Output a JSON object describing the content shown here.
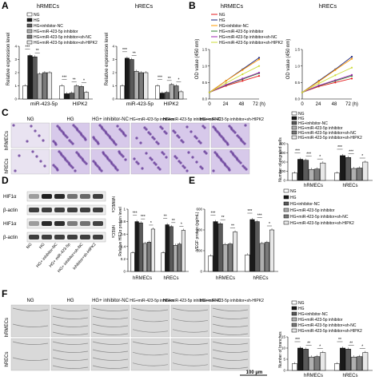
{
  "figure": {
    "panels": {
      "A": {
        "letter": "A",
        "left_title": "hRMECs",
        "right_title": "hRECs",
        "ylabel": "Relative expression level",
        "legend": [
          "NG",
          "HG",
          "HG+inhibitor-NC",
          "HG+miR-423-5p inhibitor",
          "HG+miR-423-5p inhibitor+sh-NC",
          "HG+miR-423-5p inhibitor+sh-HIPK2"
        ],
        "groups": [
          "miR-423-5p",
          "HIPK2"
        ]
      },
      "B": {
        "letter": "B",
        "left_title": "hRMECs",
        "right_title": "hRECs",
        "ylabel": "OD value (450 nm)",
        "x_ticks": [
          "0",
          "24",
          "48",
          "72 (h)"
        ],
        "legend": [
          "NG",
          "HG",
          "HG+inhibitor-NC",
          "HG+miR-423-5p inhibitor",
          "HG+miR-423-5p inhibitor+sh-NC",
          "HG+miR-423-5p inhibitor+sh-HIPK2"
        ]
      },
      "C": {
        "letter": "C",
        "col_labels": [
          "NG",
          "HG",
          "HG+ inhibitor-NC",
          "HG+miR-423-5p inhibitor",
          "HG+miR-423-5p inhibitor+sh-NC",
          "HG+miR-423-5p inhibitor+sh-HIPK2"
        ],
        "row_labels": [
          "hRMECs",
          "hRECs"
        ],
        "ylabel": "Number of migrated cells",
        "groups": [
          "hRMECs",
          "hRECs"
        ],
        "legend": [
          "NG",
          "HG",
          "HG+inhibitor-NC",
          "HG+miR-423-5p inhibitor",
          "HG+miR-423-5p inhibitor+sh-NC",
          "HG+miR-423-5p inhibitor+sh-HIPK2"
        ]
      },
      "D": {
        "letter": "D",
        "blot_labels": [
          "HIF1α",
          "β-actin",
          "HIF1α",
          "β-actin"
        ],
        "side_labels": [
          "hRMECs",
          "hRECs"
        ],
        "lane_labels": [
          "NG",
          "HG",
          "HG+ inhibitor-NC",
          "HG+ miR-423-5p",
          "HG+ inhibitor+sh-NC",
          "inhibitor+sh-HIPK2"
        ],
        "ylabel": "Relative HIF1α protein level",
        "groups": [
          "hRMECs",
          "hRECs"
        ]
      },
      "E": {
        "letter": "E",
        "ylabel": "VEGF protein (pg/mL)",
        "groups": [
          "hRMECs",
          "hRECs"
        ],
        "legend": [
          "NG",
          "HG",
          "HG+inhibitor-NC",
          "HG+miR-423-5p inhibitor",
          "HG+miR-423-5p inhibitor+sh-NC",
          "HG+miR-423-5p inhibitor+sh-HIPK2"
        ]
      },
      "F": {
        "letter": "F",
        "col_labels": [
          "NG",
          "HG",
          "HG+ inhibitor-NC",
          "HG+miR-423-5p inhibitor",
          "HG+miR-423-5p inhibitor+sh-NC",
          "HG+miR-423-5p inhibitor+sh-HIPK2"
        ],
        "row_labels": [
          "hRMECs",
          "hRECs"
        ],
        "scale": "100 μm",
        "ylabel": "Number of branches",
        "groups": [
          "hRMECs",
          "hRECs"
        ],
        "legend": [
          "NG",
          "HG",
          "HG+inhibitor-NC",
          "HG+miR-423-5p inhibitor",
          "HG+miR-423-5p inhibitor+sh-NC",
          "HG+miR-423-5p inhibitor+sh-HIPK2"
        ]
      }
    },
    "series_fills": [
      "#ffffff",
      "#1a1a1a",
      "#5a5a5a",
      "#b0b0b0",
      "#7a7a7a",
      "#e8e8e8"
    ],
    "line_colors": [
      "#e41a1c",
      "#1a237e",
      "#ff9800",
      "#2e7d32",
      "#9c27b0",
      "#cddc39"
    ]
  },
  "chart_data": [
    {
      "id": "A-left",
      "type": "bar",
      "title": "hRMECs",
      "ylabel": "Relative expression level",
      "categories": [
        "miR-423-5p",
        "HIPK2"
      ],
      "ylim": [
        0,
        4
      ],
      "yticks": [
        0,
        1,
        2,
        3,
        4
      ],
      "series": [
        {
          "name": "NG",
          "values": [
            1.0,
            1.0
          ]
        },
        {
          "name": "HG",
          "values": [
            3.3,
            0.4
          ]
        },
        {
          "name": "HG+inhibitor-NC",
          "values": [
            3.2,
            0.45
          ]
        },
        {
          "name": "HG+miR-423-5p inhibitor",
          "values": [
            1.9,
            1.0
          ]
        },
        {
          "name": "HG+miR-423-5p inhibitor+sh-NC",
          "values": [
            2.0,
            0.95
          ]
        },
        {
          "name": "HG+miR-423-5p inhibitor+sh-HIPK2",
          "values": [
            2.0,
            0.5
          ]
        }
      ],
      "sig": [
        "***",
        "**",
        "",
        "***",
        "**",
        "*"
      ]
    },
    {
      "id": "A-right",
      "type": "bar",
      "title": "hRECs",
      "ylabel": "Relative expression level",
      "categories": [
        "miR-423-5p",
        "HIPK2"
      ],
      "ylim": [
        0,
        4
      ],
      "yticks": [
        0,
        1,
        2,
        3,
        4
      ],
      "series": [
        {
          "name": "NG",
          "values": [
            1.0,
            1.0
          ]
        },
        {
          "name": "HG",
          "values": [
            3.1,
            0.45
          ]
        },
        {
          "name": "HG+inhibitor-NC",
          "values": [
            3.0,
            0.5
          ]
        },
        {
          "name": "HG+miR-423-5p inhibitor",
          "values": [
            2.1,
            1.1
          ]
        },
        {
          "name": "HG+miR-423-5p inhibitor+sh-NC",
          "values": [
            2.0,
            1.0
          ]
        },
        {
          "name": "HG+miR-423-5p inhibitor+sh-HIPK2",
          "values": [
            2.0,
            0.55
          ]
        }
      ],
      "sig": [
        "***",
        "**",
        "",
        "***",
        "**",
        "*"
      ]
    },
    {
      "id": "B-left",
      "type": "line",
      "title": "hRMECs",
      "ylabel": "OD value (450 nm)",
      "x": [
        0,
        24,
        48,
        72
      ],
      "ylim": [
        0,
        1.5
      ],
      "yticks": [
        0.0,
        0.5,
        1.0,
        1.5
      ],
      "series": [
        {
          "name": "NG",
          "values": [
            0.2,
            0.4,
            0.55,
            0.7
          ]
        },
        {
          "name": "HG",
          "values": [
            0.2,
            0.55,
            0.9,
            1.25
          ]
        },
        {
          "name": "HG+inhibitor-NC",
          "values": [
            0.2,
            0.55,
            0.88,
            1.2
          ]
        },
        {
          "name": "HG+miR-423-5p inhibitor",
          "values": [
            0.2,
            0.42,
            0.6,
            0.78
          ]
        },
        {
          "name": "HG+miR-423-5p inhibitor+sh-NC",
          "values": [
            0.2,
            0.43,
            0.62,
            0.8
          ]
        },
        {
          "name": "HG+miR-423-5p inhibitor+sh-HIPK2",
          "values": [
            0.2,
            0.48,
            0.75,
            1.0
          ]
        }
      ]
    },
    {
      "id": "B-right",
      "type": "line",
      "title": "hRECs",
      "ylabel": "OD value (450 nm)",
      "x": [
        0,
        24,
        48,
        72
      ],
      "ylim": [
        0,
        1.5
      ],
      "yticks": [
        0.0,
        0.5,
        1.0,
        1.5
      ],
      "series": [
        {
          "name": "NG",
          "values": [
            0.2,
            0.38,
            0.5,
            0.62
          ]
        },
        {
          "name": "HG",
          "values": [
            0.2,
            0.55,
            0.9,
            1.28
          ]
        },
        {
          "name": "HG+inhibitor-NC",
          "values": [
            0.2,
            0.53,
            0.88,
            1.22
          ]
        },
        {
          "name": "HG+miR-423-5p inhibitor",
          "values": [
            0.2,
            0.4,
            0.55,
            0.7
          ]
        },
        {
          "name": "HG+miR-423-5p inhibitor+sh-NC",
          "values": [
            0.2,
            0.41,
            0.57,
            0.73
          ]
        },
        {
          "name": "HG+miR-423-5p inhibitor+sh-HIPK2",
          "values": [
            0.2,
            0.47,
            0.72,
            0.95
          ]
        }
      ]
    },
    {
      "id": "C",
      "type": "bar",
      "ylabel": "Number of migrated cells",
      "categories": [
        "hRMECs",
        "hRECs"
      ],
      "ylim": [
        0,
        400
      ],
      "yticks": [
        0,
        100,
        200,
        300,
        400
      ],
      "series": [
        {
          "name": "NG",
          "values": [
            80,
            80
          ]
        },
        {
          "name": "HG",
          "values": [
            230,
            270
          ]
        },
        {
          "name": "HG+inhibitor-NC",
          "values": [
            220,
            250
          ]
        },
        {
          "name": "HG+miR-423-5p inhibitor",
          "values": [
            120,
            130
          ]
        },
        {
          "name": "HG+miR-423-5p inhibitor+sh-NC",
          "values": [
            125,
            135
          ]
        },
        {
          "name": "HG+miR-423-5p inhibitor+sh-HIPK2",
          "values": [
            190,
            200
          ]
        }
      ],
      "sig": [
        "***",
        "***",
        "*",
        "***",
        "***",
        "*"
      ]
    },
    {
      "id": "D",
      "type": "bar",
      "ylabel": "Relative HIF1α protein level",
      "categories": [
        "hRMECs",
        "hRECs"
      ],
      "ylim": [
        0,
        1.0
      ],
      "yticks": [
        0.0,
        0.2,
        0.4,
        0.6,
        0.8,
        1.0
      ],
      "series": [
        {
          "name": "NG",
          "values": [
            0.3,
            0.3
          ]
        },
        {
          "name": "HG",
          "values": [
            0.8,
            0.75
          ]
        },
        {
          "name": "HG+inhibitor-NC",
          "values": [
            0.78,
            0.72
          ]
        },
        {
          "name": "HG+miR-423-5p inhibitor",
          "values": [
            0.45,
            0.42
          ]
        },
        {
          "name": "HG+miR-423-5p inhibitor+sh-NC",
          "values": [
            0.47,
            0.44
          ]
        },
        {
          "name": "HG+miR-423-5p inhibitor+sh-HIPK2",
          "values": [
            0.68,
            0.66
          ]
        }
      ],
      "sig": [
        "***",
        "***",
        "*",
        "**",
        "**",
        "*"
      ]
    },
    {
      "id": "E",
      "type": "bar",
      "ylabel": "VEGF protein (pg/mL)",
      "categories": [
        "hRMECs",
        "hRECs"
      ],
      "ylim": [
        0,
        600
      ],
      "yticks": [
        0,
        200,
        400,
        600
      ],
      "series": [
        {
          "name": "NG",
          "values": [
            150,
            160
          ]
        },
        {
          "name": "HG",
          "values": [
            480,
            500
          ]
        },
        {
          "name": "HG+inhibitor-NC",
          "values": [
            460,
            480
          ]
        },
        {
          "name": "HG+miR-423-5p inhibitor",
          "values": [
            260,
            270
          ]
        },
        {
          "name": "HG+miR-423-5p inhibitor+sh-NC",
          "values": [
            265,
            280
          ]
        },
        {
          "name": "HG+miR-423-5p inhibitor+sh-HIPK2",
          "values": [
            380,
            400
          ]
        }
      ],
      "sig": [
        "***",
        "**",
        "**",
        "***",
        "***",
        "*"
      ]
    },
    {
      "id": "F",
      "type": "bar",
      "ylabel": "Number of branches",
      "categories": [
        "hRMECs",
        "hRECs"
      ],
      "ylim": [
        0,
        15
      ],
      "yticks": [
        0,
        5,
        10,
        15
      ],
      "series": [
        {
          "name": "NG",
          "values": [
            3,
            3
          ]
        },
        {
          "name": "HG",
          "values": [
            10,
            10
          ]
        },
        {
          "name": "HG+inhibitor-NC",
          "values": [
            9.5,
            9.5
          ]
        },
        {
          "name": "HG+miR-423-5p inhibitor",
          "values": [
            6,
            6
          ]
        },
        {
          "name": "HG+miR-423-5p inhibitor+sh-NC",
          "values": [
            6.2,
            6.2
          ]
        },
        {
          "name": "HG+miR-423-5p inhibitor+sh-HIPK2",
          "values": [
            8,
            8
          ]
        }
      ],
      "sig": [
        "***",
        "**",
        "*",
        "**",
        "**",
        "*"
      ]
    }
  ]
}
